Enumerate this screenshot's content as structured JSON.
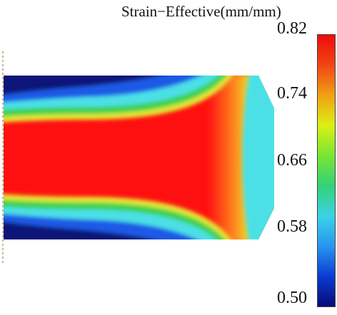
{
  "title": "Strain−Effective(mm/mm)",
  "colorbar": {
    "ticks": [
      "0.82",
      "0.74",
      "0.66",
      "0.58",
      "0.50"
    ],
    "min": 0.5,
    "max": 0.82,
    "colors": [
      "#0a0a78",
      "#0a3cd2",
      "#2896f0",
      "#3cd2e6",
      "#32d278",
      "#78e632",
      "#dcf014",
      "#f0a014",
      "#f04614",
      "#f00a0a"
    ]
  },
  "field": {
    "colors": {
      "low": "#0a1478",
      "blue": "#1e5ae6",
      "cyan": "#4be0e6",
      "green": "#3cd250",
      "yellow": "#e6e632",
      "orange": "#ff8c1e",
      "red": "#ff1010"
    }
  }
}
